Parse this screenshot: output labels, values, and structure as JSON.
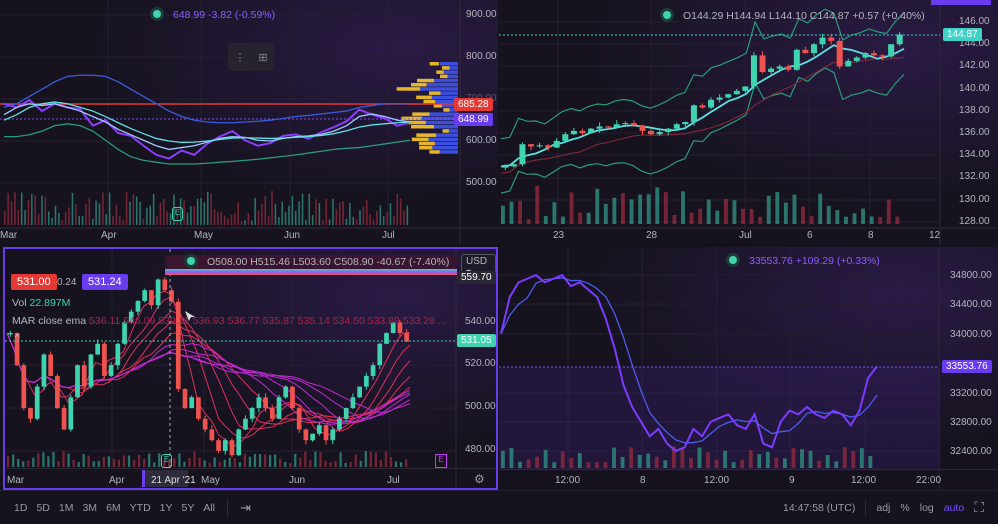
{
  "colors": {
    "up": "#3fd3b0",
    "down": "#ef5350",
    "accent": "#7b4dff",
    "bg": "#16131f"
  },
  "top_left": {
    "legend": "648.99  -3.82 (-0.59%)",
    "price_labels": {
      "red": "685.28",
      "purple": "648.99"
    },
    "y_ticks": [
      "900.00",
      "800.00",
      "700.00",
      "600.00",
      "500.00"
    ],
    "x_ticks": [
      "Mar",
      "Apr",
      "May",
      "Jun",
      "Jul"
    ],
    "earnings_marker": "E",
    "toolbar_icons": [
      "drag-handle-icon",
      "add-widget-icon"
    ]
  },
  "top_right": {
    "legend": {
      "o": "O144.29",
      "h": "H144.94",
      "l": "L144.10",
      "c": "C144.87",
      "change": "+0.57 (+0.40%)"
    },
    "price_label": "144.87",
    "y_ticks": [
      "146.00",
      "144.00",
      "142.00",
      "140.00",
      "138.00",
      "136.00",
      "134.00",
      "132.00",
      "130.00",
      "128.00"
    ],
    "x_ticks": [
      "23",
      "28",
      "Jul",
      "6",
      "8",
      "12"
    ]
  },
  "bottom_left": {
    "sell_price": "531.00",
    "spread": "0.24",
    "buy_price": "531.24",
    "ohlc": {
      "o": "O508.00",
      "h": "H515.46",
      "l": "L503.60",
      "c": "C508.90",
      "change": "-40.67 (-7.40%)"
    },
    "currency": "USD",
    "vol_label": "Vol",
    "vol_value": "22.897M",
    "ema_label": "MAR close ema",
    "ema_values": "536.11  546.09  539.11  536.93  536.77  535.87  535.14  534.50  533.89  533.28  ...",
    "price_labels": {
      "top": "559.70",
      "current": "531.05"
    },
    "y_ticks": [
      "540.00",
      "520.00",
      "500.00",
      "480.00"
    ],
    "x_ticks": [
      "Mar",
      "Apr",
      "May",
      "Jun",
      "Jul"
    ],
    "crosshair_date": "21 Apr '21",
    "earnings_marker": "E"
  },
  "bottom_right": {
    "legend": "33553.76  +109.29 (+0.33%)",
    "price_label": "33553.76",
    "y_ticks": [
      "34800.00",
      "34400.00",
      "34000.00",
      "33200.00",
      "32800.00",
      "32400.00"
    ],
    "x_ticks": [
      "12:00",
      "8",
      "12:00",
      "9",
      "12:00",
      "22:00"
    ]
  },
  "toolbar": {
    "intervals": [
      "1D",
      "5D",
      "1M",
      "3M",
      "6M",
      "YTD",
      "1Y",
      "5Y",
      "All"
    ],
    "time": "14:47:58 (UTC)",
    "adj": "adj",
    "pct": "%",
    "log": "log",
    "auto": "auto"
  },
  "chart_data": [
    {
      "type": "line",
      "panel": "top_left",
      "ylim": [
        460,
        920
      ],
      "series": [
        {
          "name": "price",
          "values": [
            700,
            690,
            710,
            680,
            700,
            690,
            685,
            640,
            655,
            620,
            612,
            585,
            560,
            550,
            572,
            560,
            590,
            610,
            625,
            600,
            585,
            592,
            612,
            616,
            604,
            622,
            636,
            652,
            684,
            670,
            660,
            640,
            648.99
          ]
        },
        {
          "name": "ma_fast",
          "values": [
            670,
            690,
            700,
            695,
            700,
            690,
            680,
            665,
            650,
            630,
            615,
            600,
            585,
            575,
            580,
            585,
            595,
            605,
            610,
            608,
            600,
            598,
            605,
            610,
            612,
            616,
            625,
            640,
            665,
            672,
            665,
            655,
            650
          ]
        },
        {
          "name": "ma_slow",
          "values": [
            655,
            670,
            690,
            700,
            705,
            700,
            690,
            680,
            665,
            648,
            632,
            618,
            605,
            598,
            594,
            595,
            598,
            602,
            606,
            607,
            606,
            605,
            606,
            608,
            610,
            613,
            618,
            626,
            636,
            642,
            645,
            648,
            650
          ]
        },
        {
          "name": "upper_band",
          "values": [
            690,
            700,
            720,
            740,
            760,
            775,
            778,
            778,
            775,
            760,
            740,
            720,
            700,
            680,
            665,
            655,
            650,
            648,
            648,
            650,
            652,
            655,
            660,
            665,
            668,
            672,
            676,
            680,
            690,
            695,
            700,
            700,
            700
          ]
        },
        {
          "name": "lower_band",
          "values": [
            610,
            610,
            615,
            625,
            640,
            645,
            640,
            625,
            600,
            575,
            555,
            545,
            540,
            535,
            535,
            535,
            537,
            540,
            542,
            545,
            548,
            552,
            556,
            560,
            565,
            570,
            575,
            578,
            580,
            585,
            590,
            595,
            600
          ]
        }
      ]
    },
    {
      "type": "candlestick",
      "panel": "top_right",
      "ylim": [
        127.6,
        146.8
      ],
      "closes": [
        133.0,
        133.2,
        135.0,
        134.8,
        134.9,
        134.7,
        135.3,
        135.9,
        136.2,
        136.0,
        136.4,
        136.6,
        136.5,
        136.8,
        136.9,
        136.7,
        136.2,
        135.9,
        136.1,
        136.4,
        136.8,
        137.0,
        138.5,
        138.3,
        139.0,
        139.2,
        139.5,
        139.8,
        140.2,
        143.0,
        141.5,
        141.8,
        142.0,
        141.7,
        143.5,
        143.2,
        144.0,
        144.6,
        144.3,
        142.0,
        142.5,
        142.8,
        143.2,
        143.0,
        142.9,
        144.0,
        144.87
      ]
    },
    {
      "type": "candlestick",
      "panel": "bottom_left",
      "ylim": [
        470,
        575
      ],
      "closes": [
        535,
        520,
        500,
        495,
        510,
        525,
        515,
        500,
        490,
        505,
        520,
        510,
        525,
        530,
        515,
        520,
        530,
        540,
        545,
        550,
        555,
        548,
        560,
        555,
        549.6,
        508.9,
        500,
        505,
        495,
        490,
        485,
        480,
        485,
        478,
        490,
        495,
        500,
        505,
        500,
        495,
        505,
        510,
        500,
        490,
        485,
        488,
        492,
        485,
        490,
        495,
        500,
        505,
        510,
        515,
        520,
        530,
        535,
        540,
        535,
        531.05
      ]
    },
    {
      "type": "line",
      "panel": "bottom_right",
      "ylim": [
        32200,
        35000
      ],
      "series": [
        {
          "name": "price",
          "values": [
            34000,
            34500,
            34700,
            34750,
            34800,
            34700,
            34750,
            34800,
            34650,
            34700,
            34600,
            34500,
            34200,
            33800,
            33300,
            33000,
            32800,
            32600,
            32700,
            32500,
            32400,
            32450,
            32700,
            32600,
            32800,
            32850,
            32900,
            32750,
            32700,
            32900,
            32500,
            32450,
            32800,
            32950,
            32900,
            33000,
            32900,
            32850,
            32950,
            32900,
            32750,
            32950,
            33400,
            33553.76
          ]
        }
      ]
    }
  ]
}
